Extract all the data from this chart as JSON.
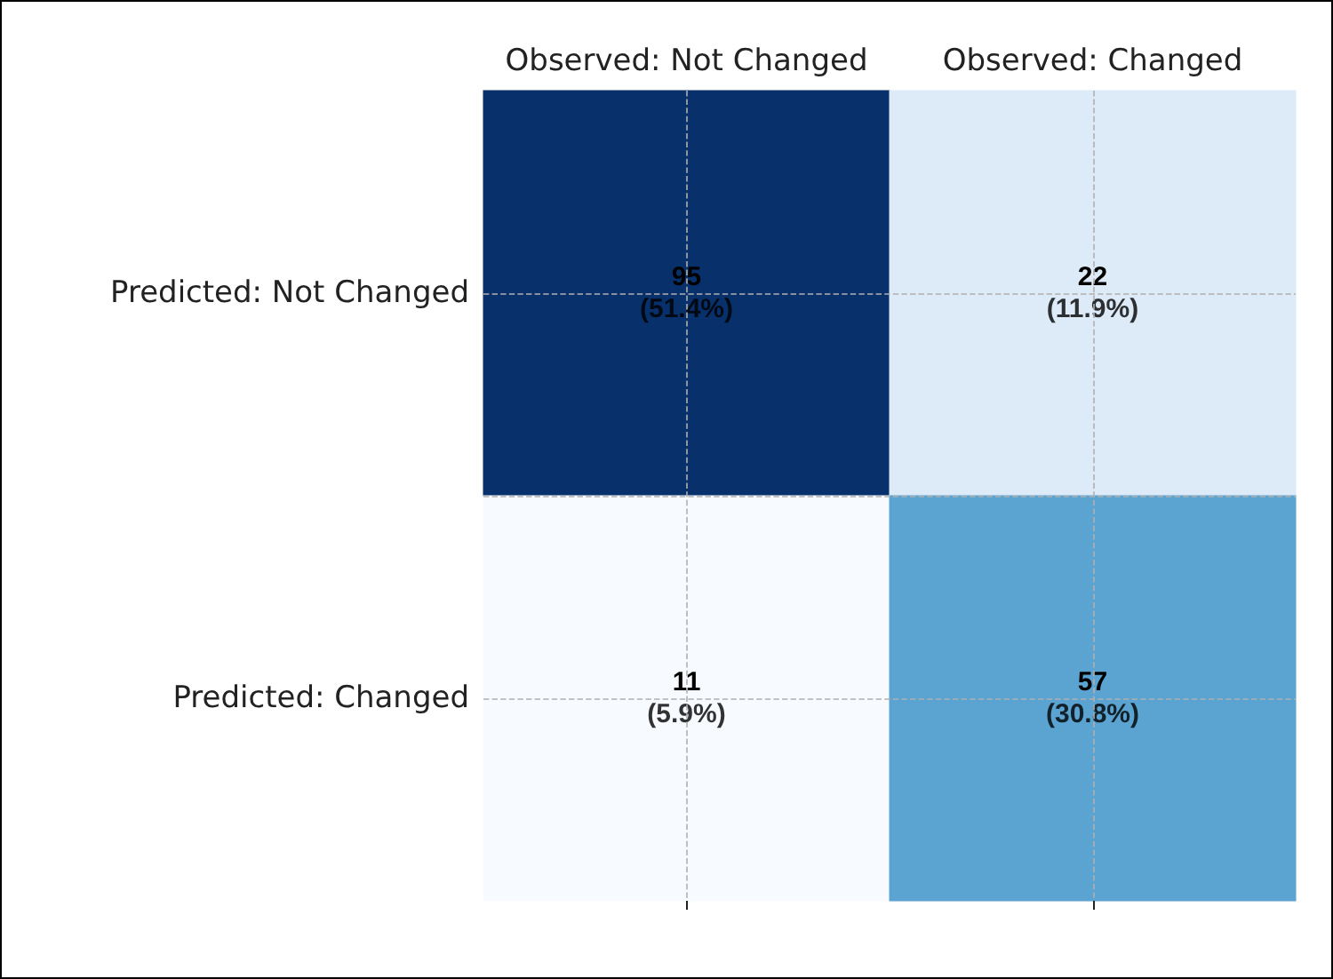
{
  "chart_data": {
    "type": "heatmap",
    "categories": [
      "Observed: Not Changed",
      "Observed: Changed"
    ],
    "y_categories": [
      "Predicted: Not Changed",
      "Predicted: Changed"
    ],
    "cells": [
      [
        95,
        22
      ],
      [
        11,
        57
      ]
    ],
    "data_labels": true,
    "annotations": [
      "(51.4%)",
      "(11.9%)",
      "(5.9%)",
      "(30.8%)"
    ],
    "grid": true
  }
}
